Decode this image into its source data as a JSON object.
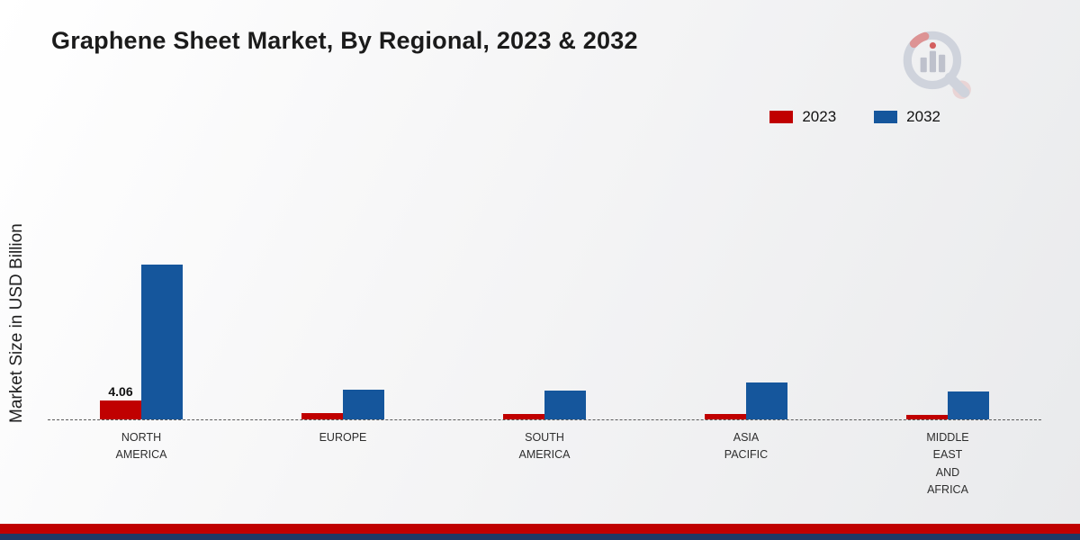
{
  "chart_data": {
    "type": "bar",
    "title": "Graphene Sheet Market, By Regional, 2023 & 2032",
    "ylabel": "Market Size in USD Billion",
    "xlabel": "",
    "categories": [
      "NORTH AMERICA",
      "EUROPE",
      "SOUTH AMERICA",
      "ASIA PACIFIC",
      "MIDDLE EAST AND AFRICA"
    ],
    "series": [
      {
        "name": "2023",
        "color": "#c00000",
        "values": [
          4.06,
          1.3,
          1.1,
          1.1,
          0.9
        ],
        "labels": [
          "4.06",
          "",
          "",
          "",
          ""
        ]
      },
      {
        "name": "2032",
        "color": "#15569c",
        "values": [
          33.0,
          6.4,
          6.2,
          7.9,
          6.0
        ],
        "labels": [
          "",
          "",
          "",
          "",
          ""
        ]
      }
    ],
    "ylim": [
      0,
      35
    ],
    "grid": false,
    "legend_position": "top-right",
    "baseline_style": "dashed"
  },
  "colors": {
    "accent_red": "#c00000",
    "accent_blue": "#15569c",
    "footer_red": "#c00000",
    "footer_navy": "#1f3864",
    "baseline": "#5a5a5a"
  },
  "branding": {
    "logo_icon": "magnifier-bar-chart-logo"
  }
}
